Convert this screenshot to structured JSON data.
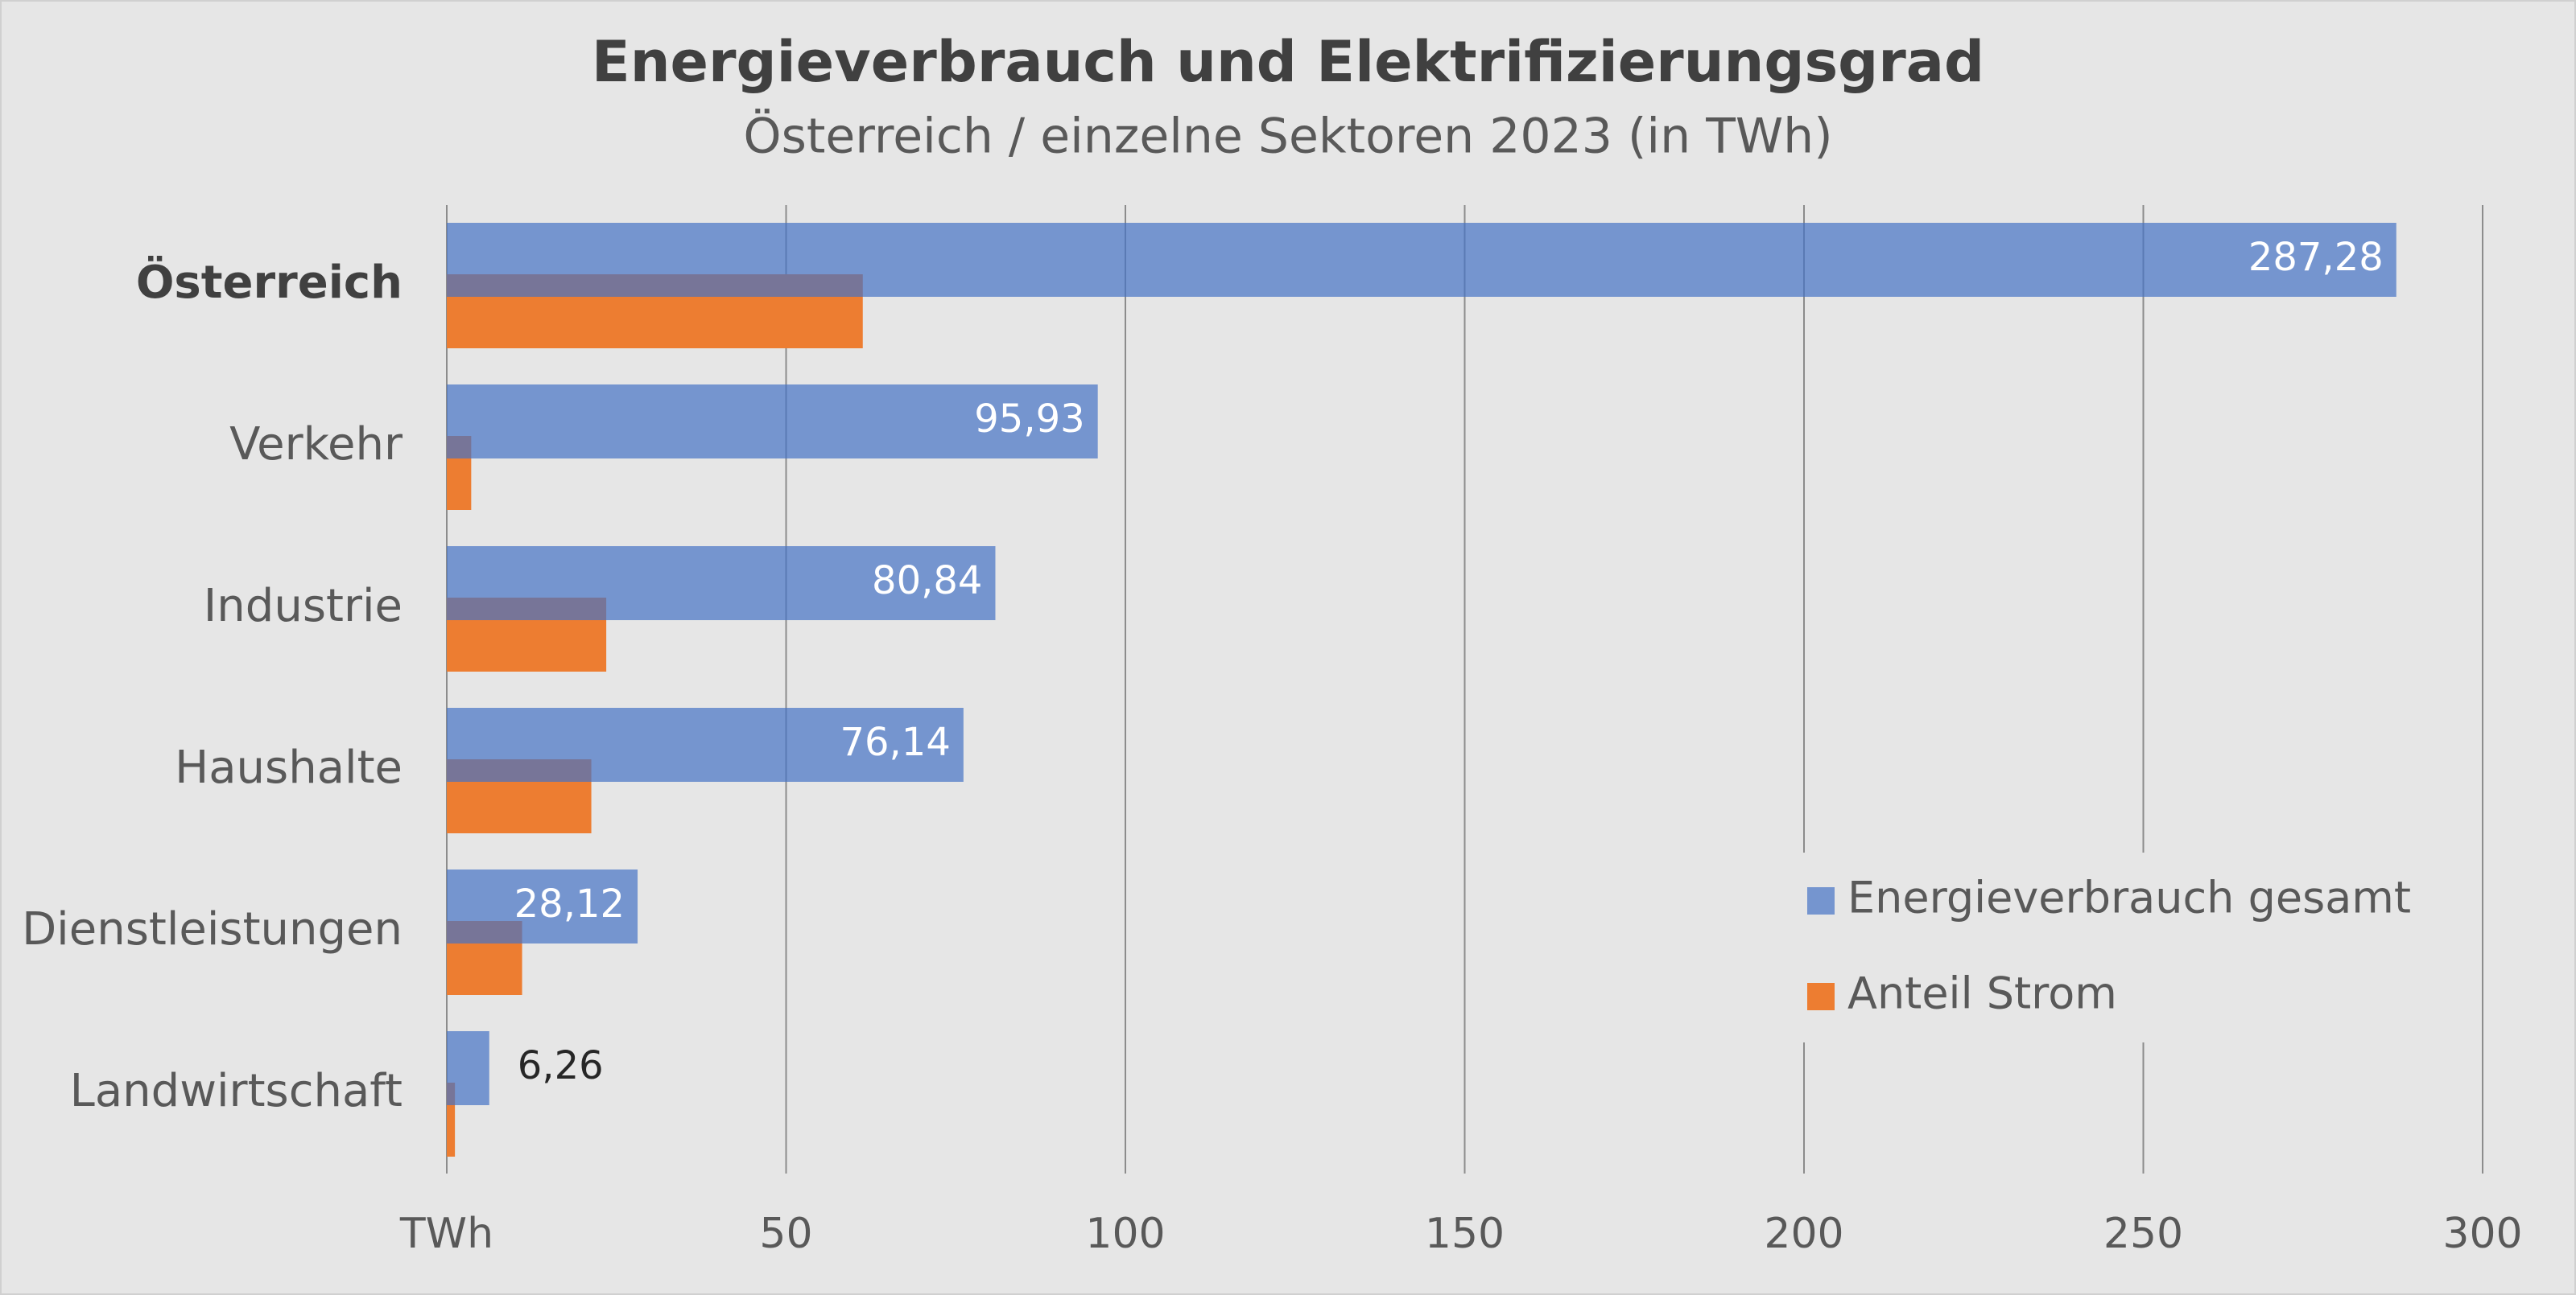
{
  "chart_data": {
    "type": "bar",
    "orientation": "horizontal",
    "title": "Energieverbrauch und Elektrifizierungsgrad",
    "subtitle": "Österreich / einzelne Sektoren 2023 (in TWh)",
    "categories": [
      "Österreich",
      "Verkehr",
      "Industrie",
      "Haushalte",
      "Dienstleistungen",
      "Landwirtschaft"
    ],
    "series": [
      {
        "name": "Energieverbrauch gesamt",
        "color": "#4472c4",
        "opacity": 0.7,
        "values": [
          287.28,
          95.93,
          80.84,
          76.14,
          28.12,
          6.26
        ],
        "value_labels": [
          "287,28",
          "95,93",
          "80,84",
          "76,14",
          "28,12",
          "6,26"
        ]
      },
      {
        "name": "Anteil Strom",
        "color": "#ed7d31",
        "opacity": 1,
        "values": [
          61.3,
          3.6,
          23.5,
          21.3,
          11.1,
          1.2
        ]
      }
    ],
    "xlim": [
      0,
      300
    ],
    "xticks": [
      {
        "value": 0,
        "label": "TWh"
      },
      50,
      100,
      150,
      200,
      250,
      300
    ],
    "grid": true,
    "legend": "lower right"
  }
}
